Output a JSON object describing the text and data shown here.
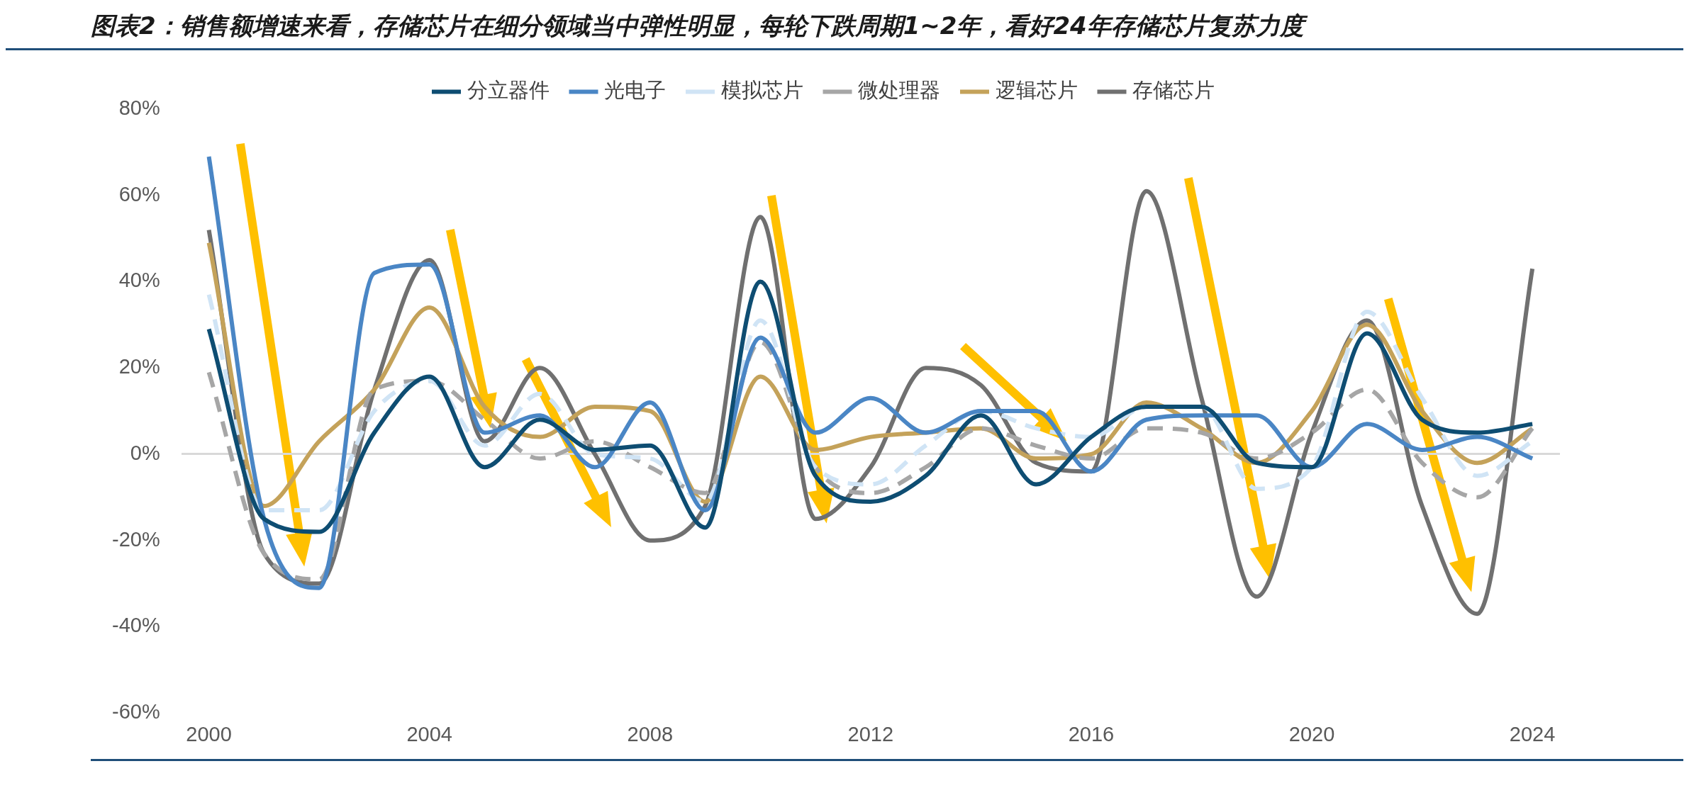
{
  "chart_data": {
    "type": "line",
    "title": "图表2：销售额增速来看，存储芯片在细分领域当中弹性明显，每轮下跌周期1~2年，看好24年存储芯片复苏力度",
    "categories": [
      "2000",
      null,
      null,
      null,
      "2004",
      null,
      null,
      null,
      "2008",
      null,
      null,
      null,
      "2012",
      null,
      null,
      null,
      "2016",
      null,
      null,
      null,
      "2020",
      null,
      null,
      null,
      "2024"
    ],
    "series": [
      {
        "name": "分立器件",
        "color": "#0e4d72",
        "line_style": "solid",
        "values": [
          29,
          -15,
          -18,
          5,
          18,
          -3,
          8,
          1,
          2,
          -17,
          40,
          -5,
          -11,
          -5,
          9,
          -7,
          4,
          11,
          11,
          -2,
          -3,
          28,
          8,
          5,
          7
        ]
      },
      {
        "name": "光电子",
        "color": "#4a86c5",
        "line_style": "solid",
        "values": [
          69,
          -15,
          -31,
          42,
          44,
          5,
          9,
          -3,
          12,
          -13,
          27,
          5,
          13,
          5,
          10,
          10,
          -4,
          8,
          9,
          9,
          -3,
          7,
          1,
          4,
          -1
        ]
      },
      {
        "name": "模拟芯片",
        "color": "#d0e4f5",
        "line_style": "dashed",
        "values": [
          37,
          -13,
          -13,
          10,
          17,
          2,
          14,
          0,
          -1,
          -11,
          31,
          -3,
          -7,
          2,
          10,
          6,
          4,
          11,
          11,
          -8,
          -3,
          33,
          13,
          -5,
          3
        ]
      },
      {
        "name": "微处理器",
        "color": "#a6a6a6",
        "line_style": "dashed",
        "values": [
          19,
          -23,
          -29,
          15,
          17,
          8,
          -1,
          3,
          -3,
          -9,
          26,
          -3,
          -9,
          -3,
          6,
          2,
          -1,
          6,
          5,
          -1,
          5,
          15,
          -2,
          -10,
          6
        ]
      },
      {
        "name": "逻辑芯片",
        "color": "#c4a25a",
        "line_style": "solid",
        "values": [
          49,
          -12,
          3,
          15,
          34,
          11,
          4,
          11,
          10,
          -11,
          18,
          1,
          4,
          5,
          6,
          -1,
          0,
          12,
          6,
          -2,
          10,
          30,
          10,
          -2,
          6
        ]
      },
      {
        "name": "存储芯片",
        "color": "#707070",
        "line_style": "solid",
        "values": [
          52,
          -23,
          -30,
          15,
          45,
          3,
          20,
          0,
          -20,
          -12,
          55,
          -15,
          -3,
          20,
          16,
          -2,
          -4,
          61,
          13,
          -33,
          5,
          31,
          -12,
          -37,
          43
        ]
      }
    ],
    "ylim": [
      -60,
      80
    ],
    "yticks": [
      {
        "value": -60,
        "label": "-60%"
      },
      {
        "value": -40,
        "label": "-40%"
      },
      {
        "value": -20,
        "label": "-20%"
      },
      {
        "value": 0,
        "label": "0%"
      },
      {
        "value": 20,
        "label": "20%"
      },
      {
        "value": 40,
        "label": "40%"
      },
      {
        "value": 60,
        "label": "60%"
      },
      {
        "value": 80,
        "label": "80%"
      }
    ],
    "legend": "top",
    "marker": "none"
  }
}
